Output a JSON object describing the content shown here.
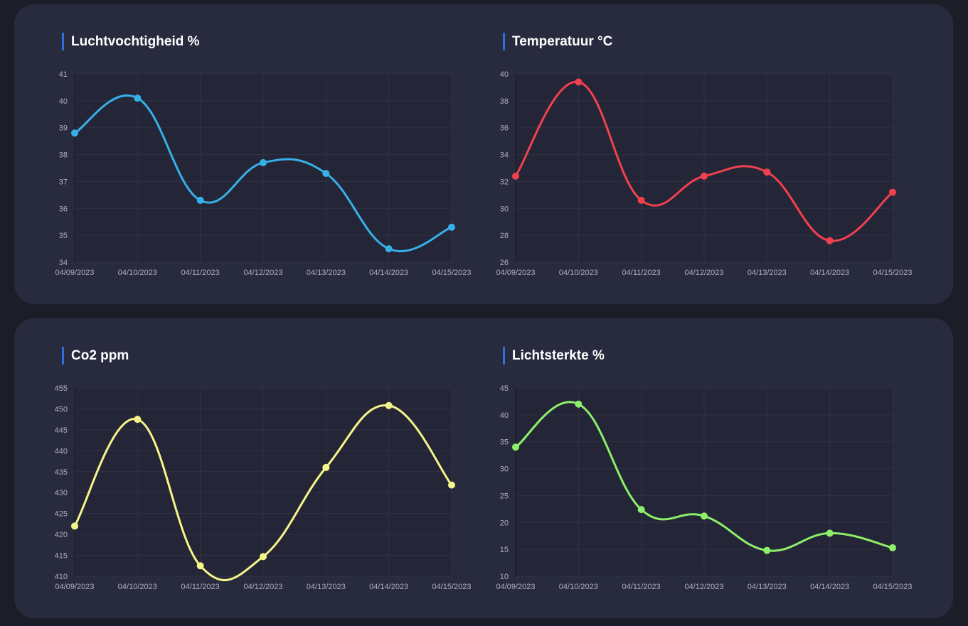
{
  "colors": {
    "page_background": "#1d1d27",
    "card_background": "#282a3e",
    "plot_background": "#242536",
    "title_accent": "#2f6fe0",
    "title_text": "#ffffff",
    "tick_text": "#aeb0bd",
    "grid": "#303247"
  },
  "charts": [
    {
      "title": "Luchtvochtigheid %"
    },
    {
      "title": "Temperatuur °C"
    },
    {
      "title": "Co2 ppm"
    },
    {
      "title": "Lichtsterkte %"
    }
  ],
  "chart_data": [
    {
      "type": "line",
      "title": "Luchtvochtigheid %",
      "xlabel": "",
      "ylabel": "",
      "categories": [
        "04/09/2023",
        "04/10/2023",
        "04/11/2023",
        "04/12/2023",
        "04/13/2023",
        "04/14/2023",
        "04/15/2023"
      ],
      "series": [
        {
          "color": "#36b0e8",
          "values": [
            38.8,
            40.1,
            36.3,
            37.7,
            37.3,
            34.5,
            35.3
          ]
        }
      ],
      "ylim": [
        34,
        41
      ],
      "yticks": [
        34,
        35,
        36,
        37,
        38,
        39,
        40,
        41
      ],
      "grid": true,
      "legend": "none",
      "curve": "smooth"
    },
    {
      "type": "line",
      "title": "Temperatuur °C",
      "xlabel": "",
      "ylabel": "",
      "categories": [
        "04/09/2023",
        "04/10/2023",
        "04/11/2023",
        "04/12/2023",
        "04/13/2023",
        "04/14/2023",
        "04/15/2023"
      ],
      "series": [
        {
          "color": "#f0414f",
          "values": [
            32.4,
            39.4,
            30.6,
            32.4,
            32.7,
            27.6,
            31.2
          ]
        }
      ],
      "ylim": [
        26,
        40
      ],
      "yticks": [
        26,
        28,
        30,
        32,
        34,
        36,
        38,
        40
      ],
      "grid": true,
      "legend": "none",
      "curve": "smooth"
    },
    {
      "type": "line",
      "title": "Co2 ppm",
      "xlabel": "",
      "ylabel": "",
      "categories": [
        "04/09/2023",
        "04/10/2023",
        "04/11/2023",
        "04/12/2023",
        "04/13/2023",
        "04/14/2023",
        "04/15/2023"
      ],
      "series": [
        {
          "color": "#f5f58a",
          "values": [
            422,
            447.5,
            412.5,
            414.7,
            436,
            450.8,
            431.8
          ]
        }
      ],
      "ylim": [
        410,
        455
      ],
      "yticks": [
        410,
        415,
        420,
        425,
        430,
        435,
        440,
        445,
        450,
        455
      ],
      "grid": true,
      "legend": "none",
      "curve": "smooth"
    },
    {
      "type": "line",
      "title": "Lichtsterkte %",
      "xlabel": "",
      "ylabel": "",
      "categories": [
        "04/09/2023",
        "04/10/2023",
        "04/11/2023",
        "04/12/2023",
        "04/13/2023",
        "04/14/2023",
        "04/15/2023"
      ],
      "series": [
        {
          "color": "#8cf06a",
          "values": [
            34,
            42,
            22.4,
            21.2,
            14.8,
            18,
            15.3
          ]
        }
      ],
      "ylim": [
        10,
        45
      ],
      "yticks": [
        10,
        15,
        20,
        25,
        30,
        35,
        40,
        45
      ],
      "grid": true,
      "legend": "none",
      "curve": "smooth"
    }
  ]
}
